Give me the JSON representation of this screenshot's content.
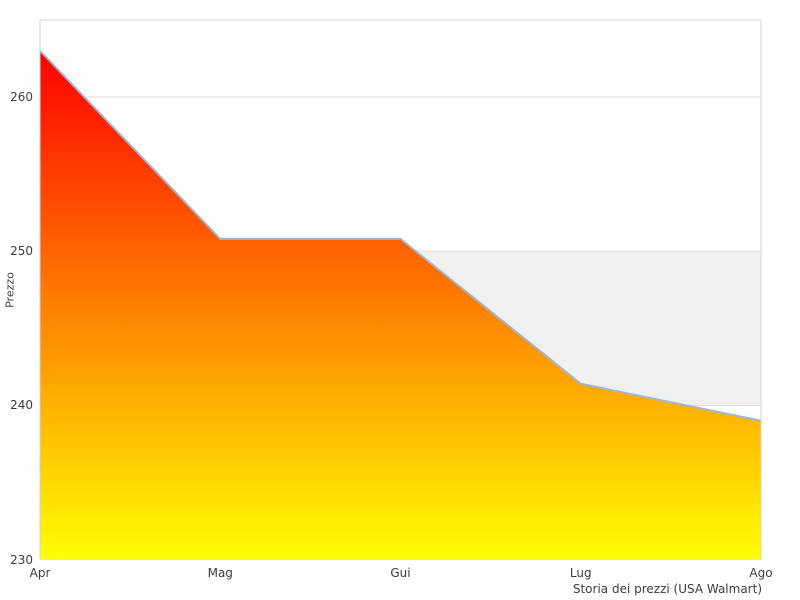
{
  "chart": {
    "footer_title": "Storia dei prezzi (USA Walmart)",
    "ylabel": "Prezzo"
  },
  "chart_data": {
    "type": "area",
    "categories": [
      "Apr",
      "Mag",
      "Gui",
      "Lug",
      "Ago"
    ],
    "values": [
      263,
      250.8,
      250.8,
      241.4,
      239
    ],
    "title": "Storia dei prezzi (USA Walmart)",
    "xlabel": "",
    "ylabel": "Prezzo",
    "ylim": [
      230,
      265
    ],
    "yticks": [
      230,
      240,
      250,
      260
    ],
    "grid": true,
    "legend_position": "none",
    "band": {
      "from": 240,
      "to": 250
    },
    "colors": {
      "gradient_top": "#ff0000",
      "gradient_bottom": "#ffff00",
      "line": "#9cb7d4",
      "band": "#f0f0f0",
      "grid": "#e0e0e0",
      "border": "#d3d3d3",
      "text": "#3d3d3d",
      "background": "#ffffff"
    }
  }
}
